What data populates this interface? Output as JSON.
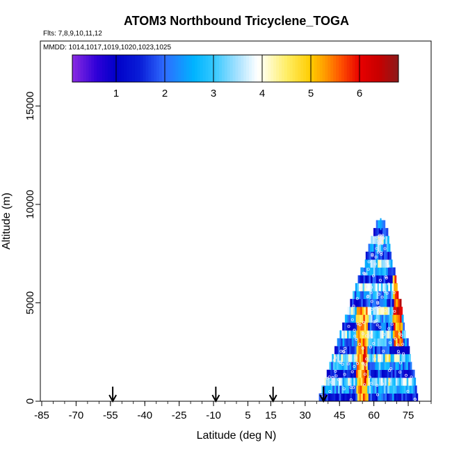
{
  "chart_data": {
    "type": "heatmap",
    "title": "ATOM3 Northbound Tricyclene_TOGA",
    "flights_label": "Flts: 7,8,9,10,11,12",
    "dates_label": "MMDD: 1014,1017,1019,1020,1023,1025",
    "xlabel": "Latitude (deg N)",
    "ylabel": "Altitude (m)",
    "xlim": [
      -85,
      85
    ],
    "ylim": [
      0,
      18300
    ],
    "x_ticks": [
      -85,
      -70,
      -55,
      -40,
      -25,
      -10,
      5,
      15,
      30,
      45,
      60,
      75
    ],
    "x_tick_labels": [
      "-85",
      "-70",
      "-55",
      "-40",
      "-25",
      "-10",
      "5",
      "15",
      "30",
      "45",
      "60",
      "75"
    ],
    "y_ticks": [
      0,
      5000,
      10000,
      15000
    ],
    "y_tick_labels": [
      "0",
      "5000",
      "10000",
      "15000"
    ],
    "colorbar": {
      "min": 0.1,
      "max": 6.8,
      "ticks": [
        1,
        2,
        3,
        4,
        5,
        6
      ],
      "tick_labels": [
        "1",
        "2",
        "3",
        "4",
        "5",
        "6"
      ],
      "stops": [
        {
          "v": 0.1,
          "c": "#8a2be2"
        },
        {
          "v": 0.6,
          "c": "#2f00d8"
        },
        {
          "v": 1.0,
          "c": "#0000c8"
        },
        {
          "v": 1.5,
          "c": "#0a1ed8"
        },
        {
          "v": 2.0,
          "c": "#2e6cff"
        },
        {
          "v": 2.6,
          "c": "#00b4ff"
        },
        {
          "v": 3.0,
          "c": "#33c8ff"
        },
        {
          "v": 3.5,
          "c": "#a8e2ff"
        },
        {
          "v": 3.9,
          "c": "#ffffff"
        },
        {
          "v": 4.0,
          "c": "#ffffee"
        },
        {
          "v": 4.5,
          "c": "#ffee66"
        },
        {
          "v": 5.0,
          "c": "#ffcc00"
        },
        {
          "v": 5.3,
          "c": "#ff9900"
        },
        {
          "v": 5.6,
          "c": "#ff5500"
        },
        {
          "v": 6.0,
          "c": "#e80000"
        },
        {
          "v": 6.4,
          "c": "#c80000"
        },
        {
          "v": 6.8,
          "c": "#8b1a1a"
        }
      ]
    },
    "arrows_latitude": [
      -54,
      -9,
      16,
      38
    ],
    "profile": {
      "lat_start": 36,
      "lat_end": 79,
      "apex_lat": 63,
      "top_altitude": 9000,
      "layer_altitude_step": 400
    },
    "hot_bands": [
      {
        "lat_min": 52,
        "lat_max": 57,
        "alt_min": 0,
        "alt_max": 4500,
        "value": 5.6
      },
      {
        "lat_min": 68,
        "lat_max": 72,
        "alt_min": 2500,
        "alt_max": 6200,
        "value": 5.9
      },
      {
        "lat_min": 55,
        "lat_max": 56.5,
        "alt_min": 500,
        "alt_max": 2800,
        "value": 6.3
      },
      {
        "lat_min": 70,
        "lat_max": 71.5,
        "alt_min": 3800,
        "alt_max": 5200,
        "value": 6.5
      }
    ]
  }
}
